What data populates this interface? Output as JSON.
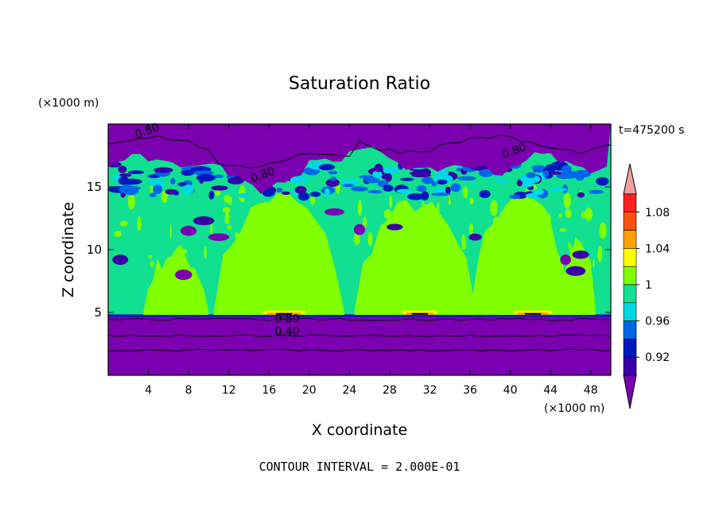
{
  "chart_data": {
    "type": "heatmap",
    "title": "Saturation Ratio",
    "xlabel": "X coordinate",
    "ylabel": "Z coordinate",
    "x_unit": "(×1000 m)",
    "y_unit": "(×1000 m)",
    "time_label": "t=475200 s",
    "footer": "CONTOUR INTERVAL = 2.000E-01",
    "xlim": [
      0,
      50
    ],
    "ylim": [
      0,
      20
    ],
    "x_ticks": [
      4,
      8,
      12,
      16,
      20,
      24,
      28,
      32,
      36,
      40,
      44,
      48
    ],
    "y_ticks": [
      5,
      10,
      15
    ],
    "colorbar": {
      "levels": [
        0.92,
        0.94,
        0.96,
        0.98,
        1.0,
        1.02,
        1.04,
        1.06,
        1.08,
        1.1
      ],
      "labels": [
        "0.92",
        "0.96",
        "1",
        "1.04",
        "1.08"
      ],
      "colors": [
        "#7a00b0",
        "#3a00a8",
        "#0018c0",
        "#0066e8",
        "#00d8e8",
        "#10e090",
        "#80ff00",
        "#ffff00",
        "#ffa000",
        "#ff5010",
        "#ff2020",
        "#f0a0a0"
      ]
    },
    "contour_labels": [
      {
        "text": "0.80",
        "x": 4,
        "z": 19.2
      },
      {
        "text": "0.80",
        "x": 15.5,
        "z": 15.7
      },
      {
        "text": "0.80",
        "x": 40.5,
        "z": 17.6
      },
      {
        "text": "0.80",
        "x": 17.8,
        "z": 4.2
      },
      {
        "text": "0.40",
        "x": 17.8,
        "z": 3.2
      }
    ],
    "regions": {
      "upper_dry_layer_base_z": 16.5,
      "moist_layer_z": [
        4.8,
        16.0
      ],
      "lower_dry_layer_top_z": 4.7,
      "supersaturated_plumes_x": [
        [
          14.5,
          20.5
        ],
        [
          28.5,
          33.5
        ],
        [
          39.5,
          45.0
        ]
      ]
    }
  }
}
